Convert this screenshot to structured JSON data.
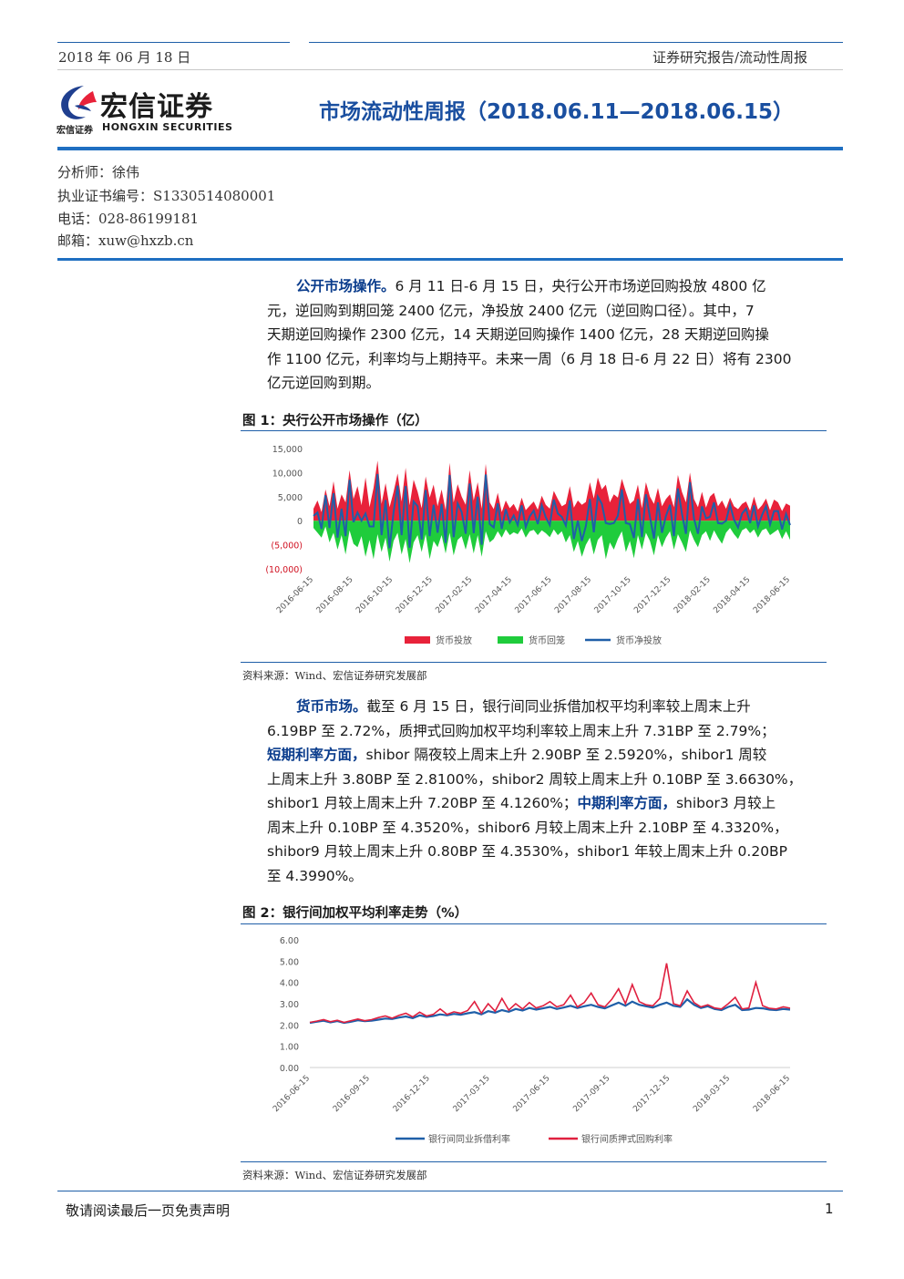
{
  "header": {
    "date": "2018 年 06 月 18 日",
    "category": "证券研究报告/流动性周报"
  },
  "logo": {
    "name_cn": "宏信证券",
    "name_small": "宏信证券",
    "name_en": "HONGXIN SECURITIES"
  },
  "report_title": "市场流动性周报（2018.06.11—2018.06.15）",
  "author": {
    "analyst": "分析师：徐伟",
    "license": "执业证书编号：S1330514080001",
    "phone": "电话：028-86199181",
    "email": "邮箱：xuw@hxzb.cn"
  },
  "para1": {
    "lead": "公开市场操作。",
    "l1": "6 月 11 日-6 月 15 日，央行公开市场逆回购投放 4800 亿",
    "l2": "元，逆回购到期回笼 2400 亿元，净投放 2400 亿元（逆回购口径）。其中，7",
    "l3": "天期逆回购操作 2300 亿元，14 天期逆回购操作 1400 亿元，28 天期逆回购操",
    "l4": "作 1100 亿元，利率均与上期持平。未来一周（6 月 18 日-6 月 22 日）将有 2300",
    "l5": "亿元逆回购到期。"
  },
  "fig1": {
    "title": "图 1：央行公开市场操作（亿）",
    "source": "资料来源：Wind、宏信证券研究发展部"
  },
  "para2": {
    "lead": "货币市场。",
    "l1": "截至 6 月 15 日，银行间同业拆借加权平均利率较上周末上升",
    "l2": "6.19BP 至 2.72%，质押式回购加权平均利率较上周末上升 7.31BP 至 2.79%；",
    "l3b": "短期利率方面，",
    "l3": "shibor 隔夜较上周末上升 2.90BP 至 2.5920%，shibor1 周较",
    "l4": "上周末上升 3.80BP 至 2.8100%，shibor2 周较上周末上升 0.10BP 至 3.6630%，",
    "l5a": "shibor1 月较上周末上升 7.20BP 至 4.1260%；",
    "l5b": "中期利率方面，",
    "l5c": "shibor3 月较上",
    "l6": "周末上升 0.10BP 至 4.3520%，shibor6 月较上周末上升 2.10BP 至 4.3320%，",
    "l7": "shibor9 月较上周末上升 0.80BP 至 4.3530%，shibor1 年较上周末上升 0.20BP",
    "l8": "至 4.3990%。"
  },
  "fig2": {
    "title": "图 2：银行间加权平均利率走势（%）",
    "source": "资料来源：Wind、宏信证券研究发展部"
  },
  "footer": {
    "disclaimer": "敬请阅读最后一页免责声明",
    "page": "1"
  },
  "colors": {
    "brand_blue": "#1f6fc1",
    "title_blue": "#1a4fa0",
    "inject_red": "#e8223a",
    "withdraw_green": "#1fcc3c",
    "net_blue": "#1f5fa8",
    "ib_rate_blue": "#1f5fa8",
    "repo_rate_red": "#e0203f"
  },
  "chart_data": [
    {
      "type": "area",
      "title": "",
      "y_ticks": [
        "15,000",
        "10,000",
        "5,000",
        "0",
        "(5,000)",
        "(10,000)"
      ],
      "ylim": [
        -10000,
        15000
      ],
      "x_ticks": [
        "2016-06-15",
        "2016-08-15",
        "2016-10-15",
        "2016-12-15",
        "2017-02-15",
        "2017-04-15",
        "2017-06-15",
        "2017-08-15",
        "2017-10-15",
        "2017-12-15",
        "2018-02-15",
        "2018-04-15",
        "2018-06-15"
      ],
      "legend": [
        "货币投放",
        "货币回笼",
        "货币净投放"
      ],
      "legend_position": "bottom",
      "series": [
        {
          "name": "货币投放",
          "values": [
            2500,
            4200,
            1800,
            6500,
            3000,
            8200,
            2500,
            5500,
            3800,
            10500,
            4500,
            7200,
            3200,
            9000,
            2800,
            6800,
            12500,
            3500,
            7800,
            2800,
            6000,
            9800,
            4000,
            11000,
            3200,
            8500,
            6000,
            2600,
            9200,
            4800,
            7500,
            3000,
            6500,
            2200,
            12000,
            3800,
            7600,
            5000,
            3300,
            10500,
            4200,
            8000,
            2500,
            11800,
            3800,
            2400,
            5800,
            1800,
            4200,
            2600,
            3500,
            1900,
            4800,
            2200,
            3100,
            4000,
            2300,
            5200,
            3300,
            2500,
            6200,
            4500,
            3000,
            3500,
            7200,
            2700,
            4200,
            3300,
            3900,
            8000,
            4600,
            9000,
            6500,
            7500,
            3800,
            5500,
            4800,
            8700,
            6000,
            3500,
            4200,
            7500,
            2600,
            8000,
            5000,
            3500,
            6800,
            3000,
            4500,
            5500,
            2800,
            9500,
            6000,
            3800,
            10000,
            4500,
            2800,
            6000,
            2700,
            5000,
            5800,
            3000,
            4200,
            2500,
            4800,
            3000,
            2400,
            3500,
            4000,
            2100,
            5000,
            2300,
            3200,
            4600,
            2200,
            4400,
            3800,
            2000,
            3600,
            3100
          ],
          "note": "approximate daily series"
        },
        {
          "name": "货币回笼",
          "values": [
            -1500,
            -2500,
            -3500,
            -1200,
            -4500,
            -2500,
            -6000,
            -3000,
            -7000,
            -2000,
            -4800,
            -5500,
            -3200,
            -7500,
            -4000,
            -8000,
            -2800,
            -6500,
            -3500,
            -8500,
            -4200,
            -2500,
            -7000,
            -3800,
            -8800,
            -4500,
            -3000,
            -6500,
            -2800,
            -8000,
            -4200,
            -5500,
            -3000,
            -6800,
            -2500,
            -7200,
            -4000,
            -3200,
            -6000,
            -2800,
            -6800,
            -3000,
            -7500,
            -2200,
            -4500,
            -3800,
            -2200,
            -3500,
            -1800,
            -3000,
            -2400,
            -2800,
            -1600,
            -3500,
            -2200,
            -1900,
            -3000,
            -2000,
            -2600,
            -3400,
            -1800,
            -3000,
            -2200,
            -4500,
            -3000,
            -6500,
            -4200,
            -7500,
            -5000,
            -3500,
            -7000,
            -4000,
            -3000,
            -8000,
            -4500,
            -6000,
            -3800,
            -2200,
            -6500,
            -4200,
            -7800,
            -3000,
            -6000,
            -2500,
            -4200,
            -7200,
            -3000,
            -5500,
            -3500,
            -2200,
            -6000,
            -2800,
            -4500,
            -6500,
            -2000,
            -4000,
            -5500,
            -3000,
            -2200,
            -4200,
            -2000,
            -3500,
            -4800,
            -2500,
            -1500,
            -2800,
            -3800,
            -2000,
            -1500,
            -2600,
            -1800,
            -3500,
            -2000,
            -1600,
            -3000,
            -2400,
            -1800,
            -3800,
            -2200,
            -4000
          ],
          "note": "approximate daily series"
        },
        {
          "name": "货币净投放",
          "note": "net = 投放 + 回笼"
        }
      ]
    },
    {
      "type": "line",
      "title": "",
      "y_ticks": [
        "6.00",
        "5.00",
        "4.00",
        "3.00",
        "2.00",
        "1.00",
        "0.00"
      ],
      "ylim": [
        0,
        6
      ],
      "x_ticks": [
        "2016-06-15",
        "2016-09-15",
        "2016-12-15",
        "2017-03-15",
        "2017-06-15",
        "2017-09-15",
        "2017-12-15",
        "2018-03-15",
        "2018-06-15"
      ],
      "legend": [
        "银行间同业拆借利率",
        "银行间质押式回购利率"
      ],
      "legend_position": "bottom",
      "series": [
        {
          "name": "银行间同业拆借利率",
          "values": [
            2.1,
            2.15,
            2.2,
            2.12,
            2.18,
            2.1,
            2.15,
            2.22,
            2.18,
            2.2,
            2.25,
            2.3,
            2.28,
            2.35,
            2.4,
            2.32,
            2.45,
            2.38,
            2.42,
            2.5,
            2.45,
            2.52,
            2.48,
            2.55,
            2.6,
            2.5,
            2.65,
            2.58,
            2.7,
            2.62,
            2.75,
            2.68,
            2.8,
            2.72,
            2.78,
            2.85,
            2.75,
            2.82,
            2.9,
            2.8,
            2.88,
            2.95,
            2.85,
            2.78,
            2.92,
            3.05,
            2.9,
            3.1,
            2.95,
            2.88,
            2.82,
            2.95,
            3.05,
            2.9,
            2.85,
            3.2,
            2.95,
            2.8,
            2.88,
            2.75,
            2.7,
            2.85,
            2.95,
            2.7,
            2.72,
            2.8,
            2.78,
            2.72,
            2.7,
            2.75,
            2.72
          ]
        },
        {
          "name": "银行间质押式回购利率",
          "values": [
            2.12,
            2.18,
            2.25,
            2.15,
            2.22,
            2.12,
            2.2,
            2.28,
            2.2,
            2.25,
            2.35,
            2.42,
            2.32,
            2.45,
            2.55,
            2.38,
            2.6,
            2.42,
            2.5,
            2.75,
            2.5,
            2.62,
            2.55,
            2.68,
            3.1,
            2.55,
            3.0,
            2.65,
            3.25,
            2.7,
            3.0,
            2.75,
            3.05,
            2.8,
            2.9,
            3.1,
            2.85,
            2.95,
            3.4,
            2.85,
            3.05,
            3.5,
            2.95,
            2.85,
            3.2,
            3.7,
            3.0,
            3.9,
            3.1,
            2.95,
            2.9,
            3.25,
            4.9,
            3.0,
            2.9,
            3.6,
            3.05,
            2.85,
            2.95,
            2.8,
            2.75,
            3.0,
            3.3,
            2.75,
            2.8,
            4.0,
            2.9,
            2.78,
            2.75,
            2.85,
            2.79
          ]
        }
      ]
    }
  ]
}
